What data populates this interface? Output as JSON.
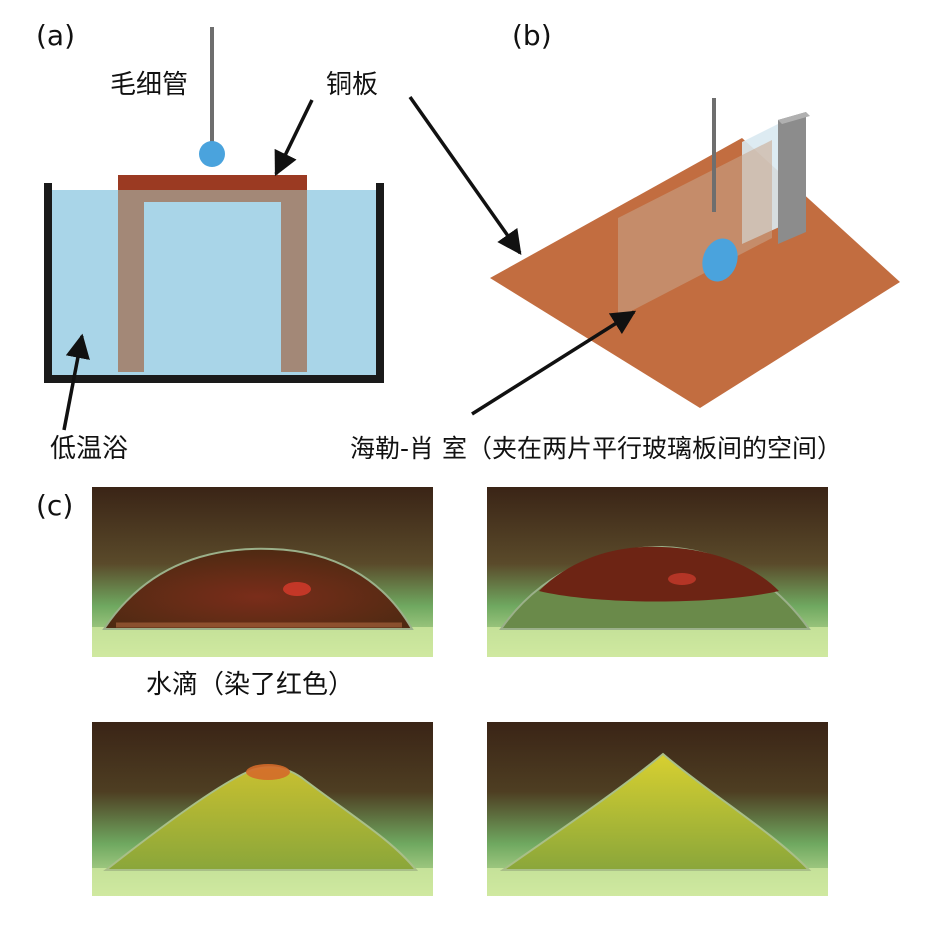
{
  "panels": {
    "a": {
      "tag": "(a)",
      "capillary_label": "毛细管",
      "copper_plate_label": "铜板",
      "bath_label": "低温浴"
    },
    "b": {
      "tag": "(b)",
      "hele_shaw_label": "海勒-肖 室（夹在两片平行玻璃板间的空间）"
    },
    "c": {
      "tag": "(c)",
      "droplet_label": "水滴（染了红色）"
    }
  },
  "colors": {
    "water": "#a9d5e8",
    "copper_dark": "#9b3a22",
    "copper_plate_3d": "#c26d40",
    "support": "#a38877",
    "capillary": "#6e6e6e",
    "droplet_blue": "#4aa3dd",
    "container": "#1a1a1a",
    "photo_bg_top": "#3a2416",
    "photo_bg_mid": "#6fa860",
    "photo_bg_bottom": "#cfe8a0"
  },
  "icons": {
    "arrow": "arrow-icon"
  }
}
